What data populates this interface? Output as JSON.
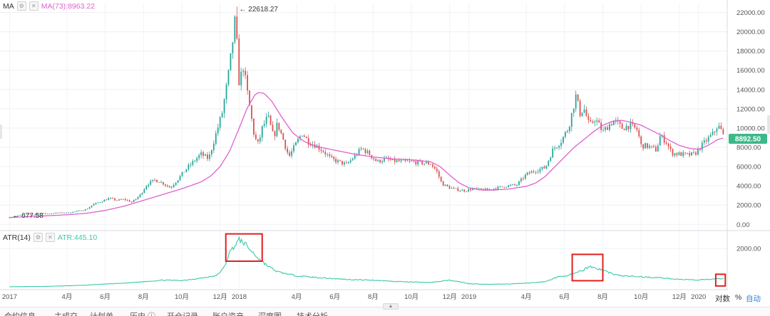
{
  "indicators": {
    "ma": {
      "name": "MA",
      "value_label": "MA(73):8963.22",
      "color": "#e060d0"
    },
    "atr": {
      "name": "ATR(14)",
      "value_label": "ATR:445.10",
      "color": "#3cc9a8"
    }
  },
  "icons": {
    "settings": "gear-icon",
    "close": "close-icon"
  },
  "price": {
    "current_label": "8892.50",
    "current_value": 8892.5,
    "current_color": "#3db88a",
    "high_label": "22618.27",
    "high_value": 22618.27,
    "low_label": "677.58",
    "low_value": 677.58
  },
  "scale_options": {
    "log": "对数",
    "percent": "%",
    "auto": "自动"
  },
  "bottom_tabs": [
    "合约信息",
    "主成交",
    "计划单",
    "历史 ⓘ",
    "开仓记录",
    "账户资产",
    "深度图",
    "技术分析"
  ],
  "chart_data": {
    "type": "candlestick",
    "x_unit": "month",
    "x_start": "2017-01",
    "x_ticks": [
      {
        "label": "2017",
        "x": 0
      },
      {
        "label": "4月",
        "x": 3
      },
      {
        "label": "6月",
        "x": 5
      },
      {
        "label": "8月",
        "x": 7
      },
      {
        "label": "10月",
        "x": 9
      },
      {
        "label": "12月",
        "x": 11
      },
      {
        "label": "2018",
        "x": 12
      },
      {
        "label": "4月",
        "x": 15
      },
      {
        "label": "6月",
        "x": 17
      },
      {
        "label": "8月",
        "x": 19
      },
      {
        "label": "10月",
        "x": 21
      },
      {
        "label": "12月",
        "x": 23
      },
      {
        "label": "2019",
        "x": 24
      },
      {
        "label": "4月",
        "x": 27
      },
      {
        "label": "6月",
        "x": 29
      },
      {
        "label": "8月",
        "x": 31
      },
      {
        "label": "10月",
        "x": 33
      },
      {
        "label": "12月",
        "x": 35
      },
      {
        "label": "2020",
        "x": 36
      }
    ],
    "x_range": [
      -0.5,
      37.5
    ],
    "price_axis": {
      "ticks": [
        0,
        2000,
        4000,
        6000,
        8000,
        10000,
        12000,
        14000,
        16000,
        18000,
        20000,
        22000
      ],
      "tick_labels": [
        "0.00",
        "2000.00",
        "4000.00",
        "6000.00",
        "8000.00",
        "10000.00",
        "12000.00",
        "14000.00",
        "16000.00",
        "18000.00",
        "20000.00",
        "22000.00"
      ],
      "range": [
        -200,
        23000
      ]
    },
    "price_anchors": [
      [
        0,
        700
      ],
      [
        0.4,
        900
      ],
      [
        0.8,
        1050
      ],
      [
        1.2,
        1000
      ],
      [
        1.6,
        1150
      ],
      [
        2.0,
        1100
      ],
      [
        2.5,
        1200
      ],
      [
        3.0,
        1200
      ],
      [
        3.5,
        1350
      ],
      [
        4.0,
        1550
      ],
      [
        4.4,
        2100
      ],
      [
        4.8,
        2400
      ],
      [
        5.2,
        2700
      ],
      [
        5.6,
        2500
      ],
      [
        6.0,
        2600
      ],
      [
        6.4,
        2300
      ],
      [
        6.8,
        3000
      ],
      [
        7.2,
        4200
      ],
      [
        7.6,
        4600
      ],
      [
        8.0,
        4300
      ],
      [
        8.4,
        3800
      ],
      [
        8.8,
        4700
      ],
      [
        9.2,
        5700
      ],
      [
        9.6,
        6500
      ],
      [
        10.0,
        7300
      ],
      [
        10.4,
        6800
      ],
      [
        10.8,
        9500
      ],
      [
        11.1,
        11500
      ],
      [
        11.4,
        15000
      ],
      [
        11.6,
        18000
      ],
      [
        11.8,
        21500
      ],
      [
        11.9,
        18000
      ],
      [
        12.0,
        14500
      ],
      [
        12.2,
        16500
      ],
      [
        12.4,
        14000
      ],
      [
        12.6,
        11500
      ],
      [
        12.8,
        9000
      ],
      [
        13.0,
        8300
      ],
      [
        13.2,
        10000
      ],
      [
        13.5,
        11200
      ],
      [
        13.8,
        9000
      ],
      [
        14.0,
        10500
      ],
      [
        14.3,
        8800
      ],
      [
        14.6,
        7000
      ],
      [
        15.0,
        8500
      ],
      [
        15.3,
        9500
      ],
      [
        15.6,
        8600
      ],
      [
        16.0,
        8200
      ],
      [
        16.4,
        7600
      ],
      [
        16.8,
        6800
      ],
      [
        17.2,
        6500
      ],
      [
        17.6,
        6200
      ],
      [
        18.0,
        7000
      ],
      [
        18.4,
        7900
      ],
      [
        18.8,
        7300
      ],
      [
        19.2,
        6500
      ],
      [
        19.6,
        6800
      ],
      [
        20.0,
        6600
      ],
      [
        20.5,
        6500
      ],
      [
        21.0,
        6500
      ],
      [
        21.5,
        6400
      ],
      [
        22.0,
        6300
      ],
      [
        22.3,
        5600
      ],
      [
        22.6,
        4200
      ],
      [
        23.0,
        3800
      ],
      [
        23.4,
        3600
      ],
      [
        23.8,
        3500
      ],
      [
        24.2,
        3700
      ],
      [
        24.6,
        3600
      ],
      [
        25.0,
        3600
      ],
      [
        25.5,
        3800
      ],
      [
        26.0,
        4000
      ],
      [
        26.5,
        4100
      ],
      [
        27.0,
        5200
      ],
      [
        27.5,
        5600
      ],
      [
        28.0,
        5900
      ],
      [
        28.4,
        7800
      ],
      [
        28.8,
        8600
      ],
      [
        29.2,
        10000
      ],
      [
        29.6,
        13400
      ],
      [
        29.8,
        11500
      ],
      [
        30.0,
        12100
      ],
      [
        30.3,
        10200
      ],
      [
        30.6,
        11000
      ],
      [
        31.0,
        9600
      ],
      [
        31.3,
        10300
      ],
      [
        31.6,
        10800
      ],
      [
        32.0,
        10000
      ],
      [
        32.4,
        10300
      ],
      [
        32.8,
        9800
      ],
      [
        33.0,
        8200
      ],
      [
        33.4,
        8100
      ],
      [
        33.8,
        7700
      ],
      [
        34.0,
        9200
      ],
      [
        34.3,
        8600
      ],
      [
        34.6,
        7400
      ],
      [
        35.0,
        7300
      ],
      [
        35.4,
        7200
      ],
      [
        35.8,
        7300
      ],
      [
        36.0,
        7800
      ],
      [
        36.4,
        8700
      ],
      [
        36.8,
        9500
      ],
      [
        37.0,
        10300
      ],
      [
        37.2,
        9700
      ],
      [
        37.35,
        8900
      ]
    ],
    "price_high_point": [
      11.85,
      22618.27
    ],
    "price_low_point": [
      0,
      677.58
    ],
    "ma_anchors": [
      [
        0,
        720
      ],
      [
        1.5,
        850
      ],
      [
        3.0,
        1000
      ],
      [
        4.0,
        1150
      ],
      [
        5.0,
        1450
      ],
      [
        6.0,
        1900
      ],
      [
        7.0,
        2500
      ],
      [
        8.0,
        3100
      ],
      [
        9.0,
        3700
      ],
      [
        10.0,
        4400
      ],
      [
        10.5,
        5000
      ],
      [
        11.0,
        6000
      ],
      [
        11.5,
        7600
      ],
      [
        12.0,
        10000
      ],
      [
        12.4,
        12000
      ],
      [
        12.8,
        13400
      ],
      [
        13.0,
        13700
      ],
      [
        13.3,
        13600
      ],
      [
        13.7,
        12800
      ],
      [
        14.2,
        11200
      ],
      [
        14.8,
        9500
      ],
      [
        15.4,
        8600
      ],
      [
        16.0,
        8100
      ],
      [
        17.0,
        7700
      ],
      [
        18.0,
        7300
      ],
      [
        19.0,
        7000
      ],
      [
        20.0,
        6800
      ],
      [
        21.0,
        6700
      ],
      [
        22.0,
        6500
      ],
      [
        22.5,
        6000
      ],
      [
        23.0,
        5100
      ],
      [
        23.5,
        4300
      ],
      [
        24.0,
        3800
      ],
      [
        24.5,
        3600
      ],
      [
        25.0,
        3550
      ],
      [
        26.0,
        3650
      ],
      [
        27.0,
        3950
      ],
      [
        27.5,
        4300
      ],
      [
        28.0,
        5000
      ],
      [
        28.5,
        6000
      ],
      [
        29.0,
        7000
      ],
      [
        29.5,
        8000
      ],
      [
        30.0,
        8800
      ],
      [
        30.5,
        9600
      ],
      [
        31.0,
        10300
      ],
      [
        31.5,
        10700
      ],
      [
        32.0,
        10800
      ],
      [
        32.5,
        10600
      ],
      [
        33.0,
        10300
      ],
      [
        33.5,
        9800
      ],
      [
        34.0,
        9300
      ],
      [
        34.5,
        8700
      ],
      [
        35.0,
        8200
      ],
      [
        35.5,
        7900
      ],
      [
        36.0,
        7800
      ],
      [
        36.5,
        8200
      ],
      [
        37.0,
        8800
      ],
      [
        37.35,
        9000
      ]
    ],
    "atr_axis": {
      "ticks": [
        2000
      ],
      "tick_labels": [
        "2000.00"
      ],
      "range": [
        0,
        2700
      ]
    },
    "atr_anchors": [
      [
        0,
        40
      ],
      [
        2,
        60
      ],
      [
        4,
        120
      ],
      [
        5,
        180
      ],
      [
        6,
        220
      ],
      [
        7,
        300
      ],
      [
        8,
        380
      ],
      [
        9,
        360
      ],
      [
        10,
        480
      ],
      [
        10.8,
        600
      ],
      [
        11.2,
        1000
      ],
      [
        11.5,
        1800
      ],
      [
        11.8,
        2200
      ],
      [
        12.0,
        2450
      ],
      [
        12.3,
        2250
      ],
      [
        12.6,
        1900
      ],
      [
        13.0,
        1500
      ],
      [
        13.5,
        1100
      ],
      [
        14.0,
        800
      ],
      [
        15.0,
        600
      ],
      [
        16.0,
        520
      ],
      [
        17.0,
        450
      ],
      [
        18.0,
        400
      ],
      [
        19.0,
        380
      ],
      [
        20.0,
        320
      ],
      [
        21.0,
        280
      ],
      [
        22.0,
        260
      ],
      [
        22.5,
        320
      ],
      [
        23.0,
        380
      ],
      [
        23.5,
        300
      ],
      [
        24.0,
        200
      ],
      [
        25.0,
        160
      ],
      [
        26.0,
        180
      ],
      [
        27.0,
        220
      ],
      [
        28.0,
        300
      ],
      [
        28.5,
        500
      ],
      [
        29.0,
        600
      ],
      [
        29.5,
        700
      ],
      [
        30.0,
        900
      ],
      [
        30.3,
        1100
      ],
      [
        30.6,
        1000
      ],
      [
        31.0,
        900
      ],
      [
        31.5,
        700
      ],
      [
        32.0,
        600
      ],
      [
        33.0,
        550
      ],
      [
        34.0,
        500
      ],
      [
        35.0,
        420
      ],
      [
        36.0,
        380
      ],
      [
        36.5,
        420
      ],
      [
        37.0,
        470
      ],
      [
        37.35,
        445
      ]
    ],
    "annotations": [
      {
        "type": "box",
        "panel": "atr",
        "x0": 11.3,
        "x1": 13.2,
        "y0": 1350,
        "y1": 2750
      },
      {
        "type": "box",
        "panel": "atr",
        "x0": 29.4,
        "x1": 31.0,
        "y0": 350,
        "y1": 1700
      },
      {
        "type": "box",
        "panel": "atr",
        "x0": 36.9,
        "x1": 37.4,
        "y0": 80,
        "y1": 680
      }
    ],
    "grid": true,
    "candle_colors": {
      "up": "#26a69a",
      "down": "#d9534f"
    },
    "annotation_color": "#e02020"
  }
}
